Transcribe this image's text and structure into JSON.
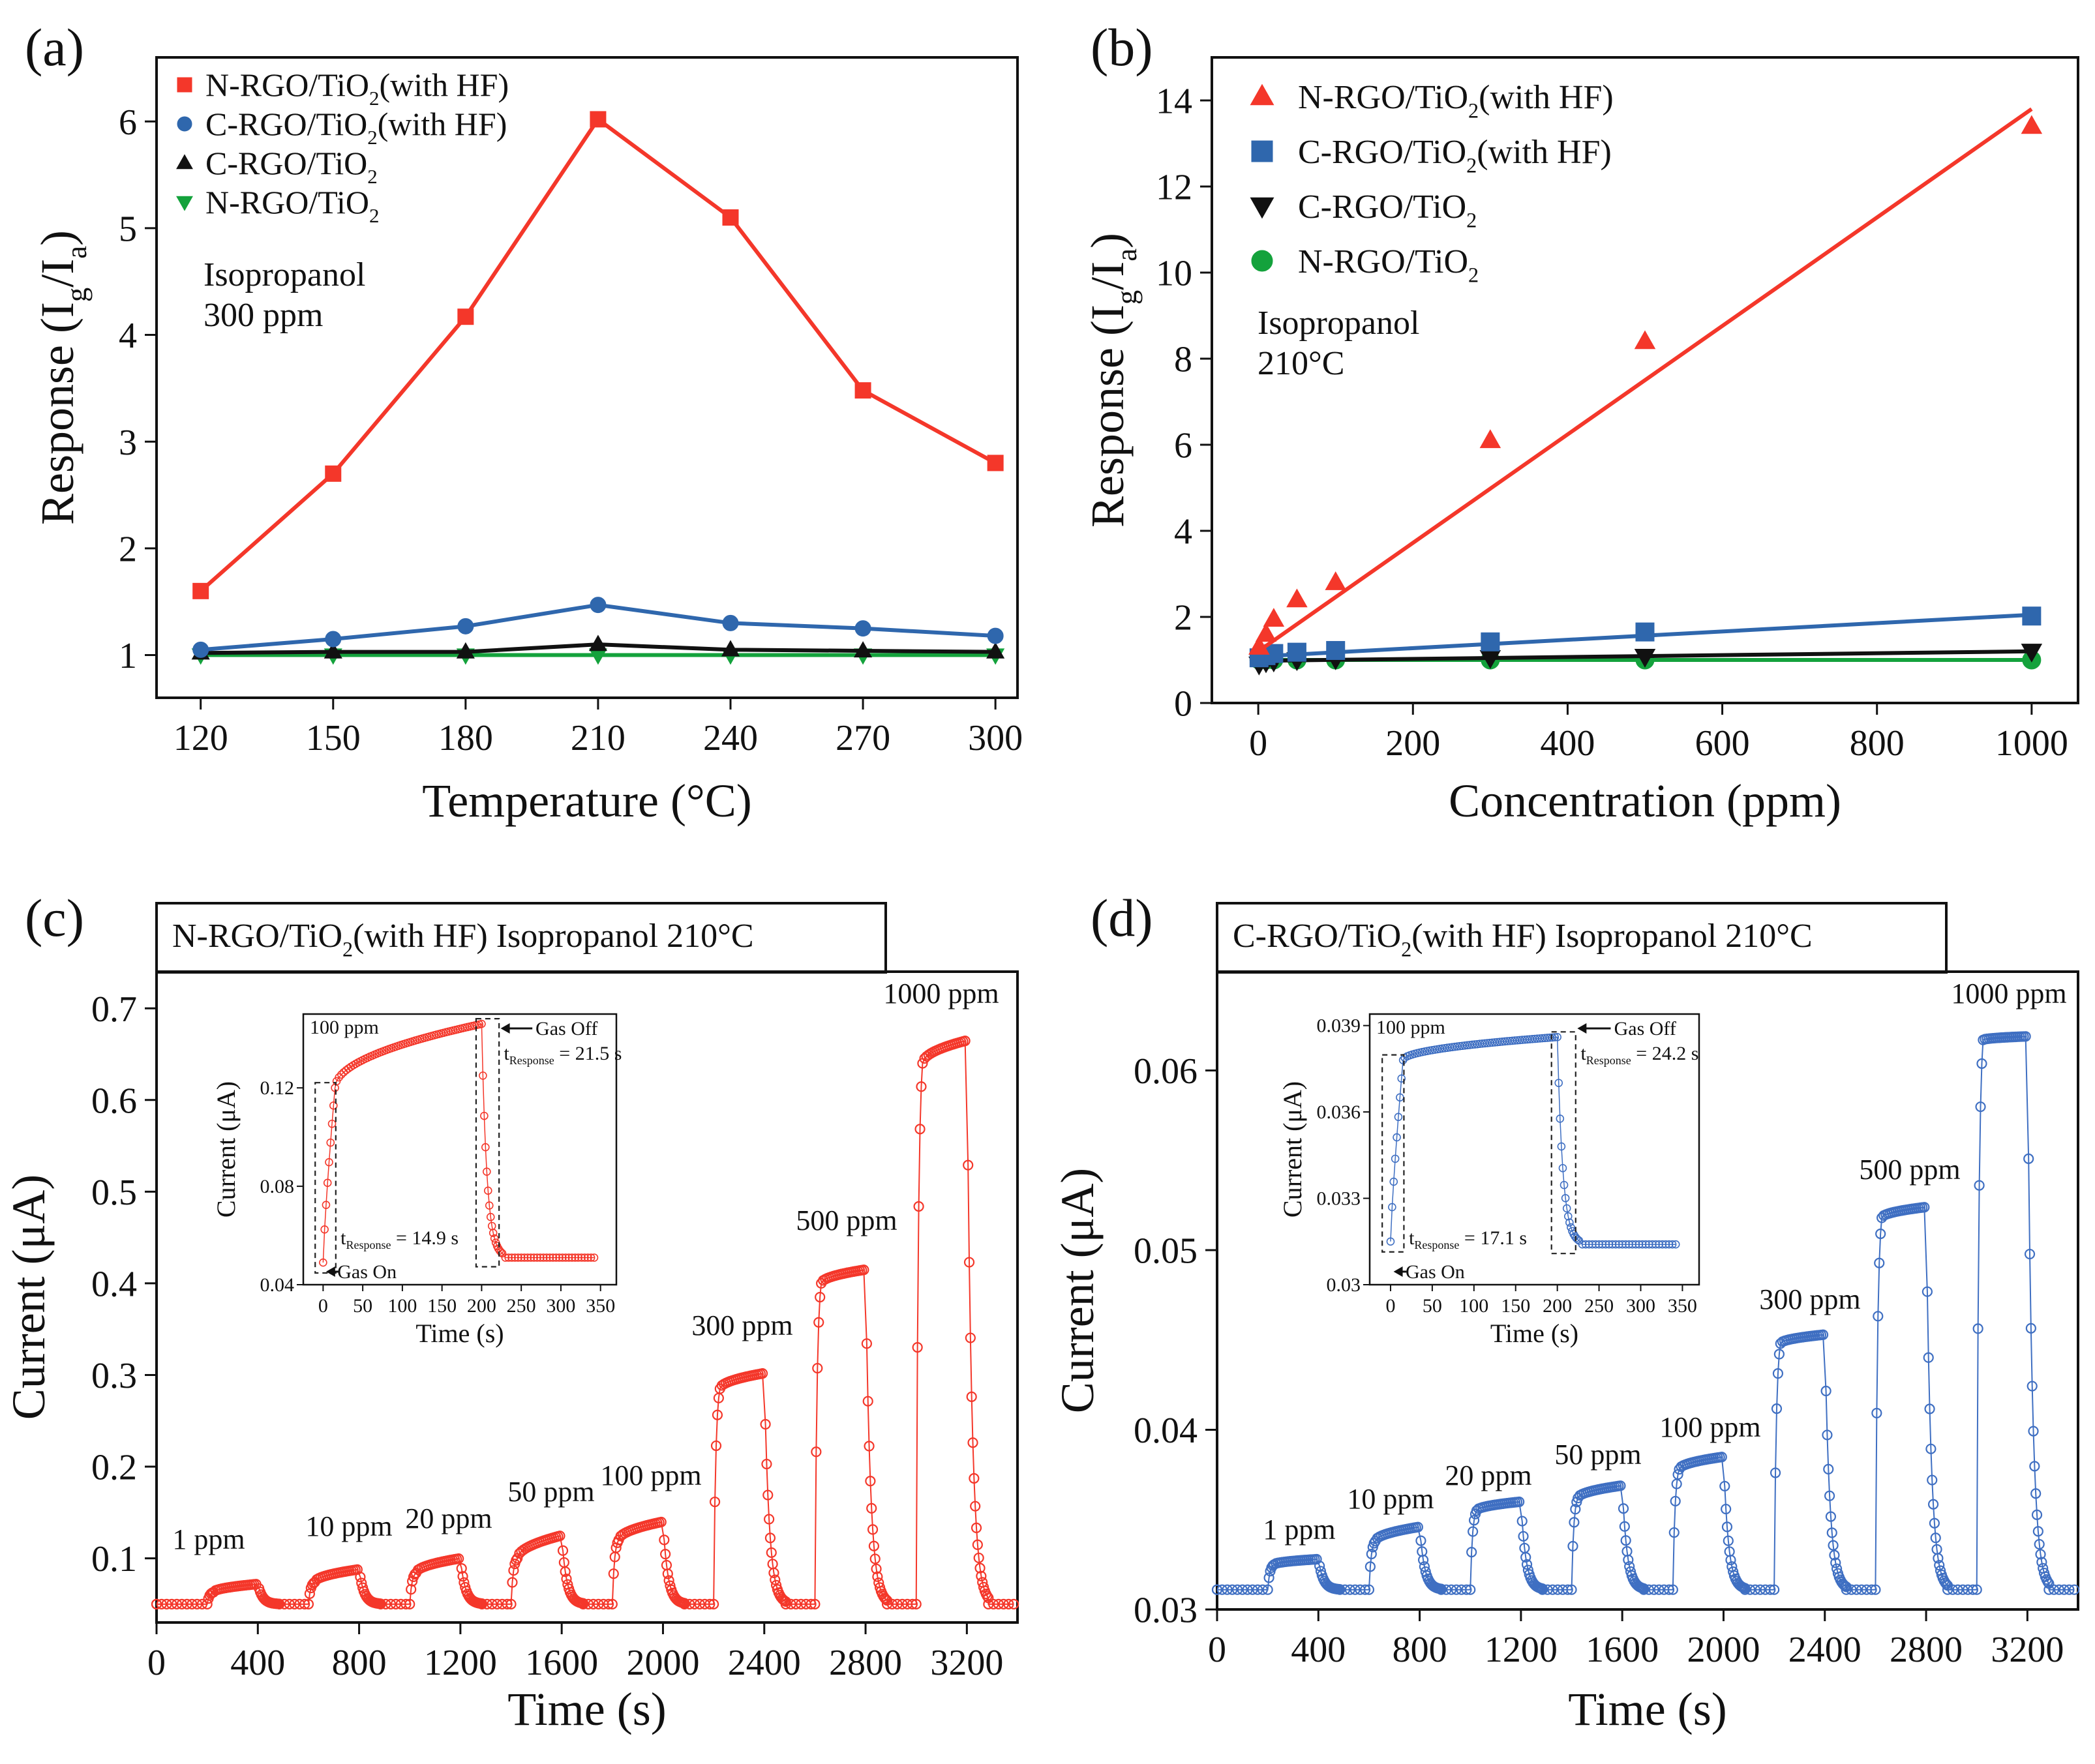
{
  "figure": {
    "panels": [
      {
        "label": "(a)"
      },
      {
        "label": "(b)"
      },
      {
        "label": "(c)"
      },
      {
        "label": "(d)"
      }
    ]
  },
  "chart_data": [
    {
      "id": "a",
      "type": "line",
      "title": "",
      "xlabel": "Temperature (°C)",
      "ylabel": "Response (I_g/I_a)",
      "ylabel_parts": [
        "Response (I",
        "g",
        "/I",
        "a",
        ")"
      ],
      "xlim": [
        110,
        305
      ],
      "ylim": [
        0.6,
        6.6
      ],
      "xticks": [
        120,
        150,
        180,
        210,
        240,
        270,
        300
      ],
      "yticks": [
        1,
        2,
        3,
        4,
        5,
        6
      ],
      "grid": false,
      "legend_position": "top-left",
      "annotation": [
        "Isopropanol",
        "300 ppm"
      ],
      "x": [
        120,
        150,
        180,
        210,
        240,
        270,
        300
      ],
      "series": [
        {
          "name": "N-RGO/TiO2(with HF)",
          "name_parts": [
            "N-RGO/TiO",
            "2",
            "(with HF)"
          ],
          "marker": "square",
          "color": "#f4372a",
          "values": [
            1.6,
            2.7,
            4.17,
            6.02,
            5.1,
            3.48,
            2.8
          ]
        },
        {
          "name": "C-RGO/TiO2(with HF)",
          "name_parts": [
            "C-RGO/TiO",
            "2",
            "(with HF)"
          ],
          "marker": "circle",
          "color": "#2f67ad",
          "values": [
            1.05,
            1.15,
            1.27,
            1.47,
            1.3,
            1.25,
            1.18
          ]
        },
        {
          "name": "C-RGO/TiO2",
          "name_parts": [
            "C-RGO/TiO",
            "2",
            ""
          ],
          "marker": "triangle-up",
          "color": "#111111",
          "values": [
            1.02,
            1.03,
            1.03,
            1.1,
            1.05,
            1.04,
            1.03
          ]
        },
        {
          "name": "N-RGO/TiO2",
          "name_parts": [
            "N-RGO/TiO",
            "2",
            ""
          ],
          "marker": "triangle-down",
          "color": "#14a23c",
          "values": [
            1.0,
            1.0,
            1.0,
            1.0,
            1.0,
            1.0,
            1.0
          ]
        }
      ]
    },
    {
      "id": "b",
      "type": "scatter",
      "title": "",
      "xlabel": "Concentration  (ppm)",
      "ylabel": "Response (I_g/I_a)",
      "ylabel_parts": [
        "Response (I",
        "g",
        "/I",
        "a",
        ")"
      ],
      "xlim": [
        -60,
        1060
      ],
      "ylim": [
        0,
        15
      ],
      "xticks": [
        0,
        200,
        400,
        600,
        800,
        1000
      ],
      "yticks": [
        0,
        2,
        4,
        6,
        8,
        10,
        12,
        14
      ],
      "grid": false,
      "legend_position": "top-left",
      "annotation": [
        "Isopropanol",
        "210°C"
      ],
      "series": [
        {
          "name": "N-RGO/TiO2(with HF)",
          "name_parts": [
            "N-RGO/TiO",
            "2",
            "(with HF)"
          ],
          "marker": "triangle-up",
          "color": "#f4372a",
          "x": [
            1,
            10,
            20,
            50,
            100,
            300,
            500,
            1000
          ],
          "values": [
            1.3,
            1.6,
            1.95,
            2.4,
            2.8,
            6.1,
            8.4,
            13.4
          ],
          "fit": [
            [
              0,
              1.2
            ],
            [
              1000,
              13.8
            ]
          ]
        },
        {
          "name": "C-RGO/TiO2(with HF)",
          "name_parts": [
            "C-RGO/TiO",
            "2",
            "(with HF)"
          ],
          "marker": "square",
          "color": "#2f67ad",
          "x": [
            1,
            10,
            20,
            50,
            100,
            300,
            500,
            1000
          ],
          "values": [
            1.05,
            1.1,
            1.15,
            1.18,
            1.22,
            1.42,
            1.65,
            2.02
          ],
          "fit": [
            [
              0,
              1.08
            ],
            [
              1000,
              2.05
            ]
          ]
        },
        {
          "name": "C-RGO/TiO2",
          "name_parts": [
            "C-RGO/TiO",
            "2",
            ""
          ],
          "marker": "triangle-down",
          "color": "#111111",
          "x": [
            1,
            10,
            20,
            50,
            100,
            300,
            500,
            1000
          ],
          "values": [
            0.9,
            0.95,
            0.97,
            1.0,
            1.02,
            1.05,
            1.08,
            1.2
          ],
          "fit": [
            [
              0,
              0.98
            ],
            [
              1000,
              1.2
            ]
          ]
        },
        {
          "name": "N-RGO/TiO2",
          "name_parts": [
            "N-RGO/TiO",
            "2",
            ""
          ],
          "marker": "circle",
          "color": "#14a23c",
          "x": [
            1,
            10,
            20,
            50,
            100,
            300,
            500,
            1000
          ],
          "values": [
            1.0,
            1.0,
            1.0,
            1.0,
            1.0,
            1.0,
            1.0,
            1.0
          ],
          "fit": [
            [
              0,
              1.0
            ],
            [
              1000,
              1.0
            ]
          ]
        }
      ]
    },
    {
      "id": "c",
      "type": "line",
      "title": "N-RGO/TiO2(with HF)  Isopropanol  210°C",
      "title_parts": [
        "N-RGO/TiO",
        "2",
        "(with HF)  Isopropanol  210°C"
      ],
      "xlabel": "Time (s)",
      "ylabel": "Current (μA)",
      "xlim": [
        0,
        3400
      ],
      "ylim": [
        0.03,
        0.74
      ],
      "xticks": [
        0,
        400,
        800,
        1200,
        1600,
        2000,
        2400,
        2800,
        3200
      ],
      "yticks": [
        0.1,
        0.2,
        0.3,
        0.4,
        0.5,
        0.6,
        0.7
      ],
      "ytick_labels": [
        "0.1",
        "0.2",
        "0.3",
        "0.4",
        "0.5",
        "0.6",
        "0.7"
      ],
      "grid": false,
      "color": "#f4372a",
      "baseline": 0.05,
      "pulses": [
        {
          "label": "1 ppm",
          "start": 200,
          "end": 400,
          "on": 0.063,
          "peak": 0.072
        },
        {
          "label": "10 ppm",
          "start": 600,
          "end": 800,
          "on": 0.074,
          "peak": 0.088
        },
        {
          "label": "20 ppm",
          "start": 1000,
          "end": 1200,
          "on": 0.084,
          "peak": 0.1
        },
        {
          "label": "50 ppm",
          "start": 1400,
          "end": 1600,
          "on": 0.1,
          "peak": 0.125
        },
        {
          "label": "100 ppm",
          "start": 1800,
          "end": 2000,
          "on": 0.12,
          "peak": 0.14
        },
        {
          "label": "300 ppm",
          "start": 2200,
          "end": 2400,
          "on": 0.285,
          "peak": 0.302
        },
        {
          "label": "500 ppm",
          "start": 2600,
          "end": 2800,
          "on": 0.4,
          "peak": 0.415
        },
        {
          "label": "1000 ppm",
          "start": 3000,
          "end": 3200,
          "on": 0.64,
          "peak": 0.665
        }
      ],
      "inset": {
        "xlabel": "Time (s)",
        "ylabel": "Current (μA)",
        "xlim": [
          -25,
          370
        ],
        "ylim": [
          0.04,
          0.15
        ],
        "xticks": [
          0,
          50,
          100,
          150,
          200,
          250,
          300,
          350
        ],
        "yticks": [
          0.04,
          0.08,
          0.12
        ],
        "ytick_labels": [
          "0.04",
          "0.08",
          "0.12"
        ],
        "baseline": 0.049,
        "rise_level": 0.12,
        "plateau": 0.146,
        "final": 0.051,
        "conc_label": "100 ppm",
        "gas_on": "Gas On",
        "gas_off": "Gas Off",
        "t_on_value": "= 14.9 s",
        "t_off_value": "= 21.5 s",
        "t_symbol": "t",
        "t_sub": "Response"
      }
    },
    {
      "id": "d",
      "type": "line",
      "title": "C-RGO/TiO2(with HF)  Isopropanol  210°C",
      "title_parts": [
        "C-RGO/TiO",
        "2",
        "(with HF)  Isopropanol  210°C"
      ],
      "xlabel": "Time (s)",
      "ylabel": "Current (μA)",
      "xlim": [
        0,
        3400
      ],
      "ylim": [
        0.03,
        0.0655
      ],
      "xticks": [
        0,
        400,
        800,
        1200,
        1600,
        2000,
        2400,
        2800,
        3200
      ],
      "yticks": [
        0.03,
        0.04,
        0.05,
        0.06
      ],
      "ytick_labels": [
        "0.03",
        "0.04",
        "0.05",
        "0.06"
      ],
      "grid": false,
      "color": "#3f6fc2",
      "baseline": 0.0311,
      "pulses": [
        {
          "label": "1 ppm",
          "start": 200,
          "end": 400,
          "on": 0.0325,
          "peak": 0.0328
        },
        {
          "label": "10 ppm",
          "start": 600,
          "end": 800,
          "on": 0.0338,
          "peak": 0.0346
        },
        {
          "label": "20 ppm",
          "start": 1000,
          "end": 1200,
          "on": 0.0355,
          "peak": 0.036
        },
        {
          "label": "50 ppm",
          "start": 1400,
          "end": 1600,
          "on": 0.0362,
          "peak": 0.0369
        },
        {
          "label": "100 ppm",
          "start": 1800,
          "end": 2000,
          "on": 0.0378,
          "peak": 0.0385
        },
        {
          "label": "300 ppm",
          "start": 2200,
          "end": 2400,
          "on": 0.0448,
          "peak": 0.0453
        },
        {
          "label": "500 ppm",
          "start": 2600,
          "end": 2800,
          "on": 0.0518,
          "peak": 0.0524
        },
        {
          "label": "1000 ppm",
          "start": 3000,
          "end": 3200,
          "on": 0.0617,
          "peak": 0.0619
        }
      ],
      "inset": {
        "xlabel": "Time (s)",
        "ylabel": "Current (μA)",
        "xlim": [
          -25,
          370
        ],
        "ylim": [
          0.03,
          0.0394
        ],
        "xticks": [
          0,
          50,
          100,
          150,
          200,
          250,
          300,
          350
        ],
        "yticks": [
          0.03,
          0.033,
          0.036,
          0.039
        ],
        "ytick_labels": [
          "0.03",
          "0.033",
          "0.036",
          "0.039"
        ],
        "baseline": 0.0315,
        "rise_level": 0.0378,
        "plateau": 0.0386,
        "final": 0.0314,
        "conc_label": "100 ppm",
        "gas_on": "Gas On",
        "gas_off": "Gas Off",
        "t_on_value": "= 17.1 s",
        "t_off_value": "= 24.2 s",
        "t_symbol": "t",
        "t_sub": "Response"
      }
    }
  ]
}
